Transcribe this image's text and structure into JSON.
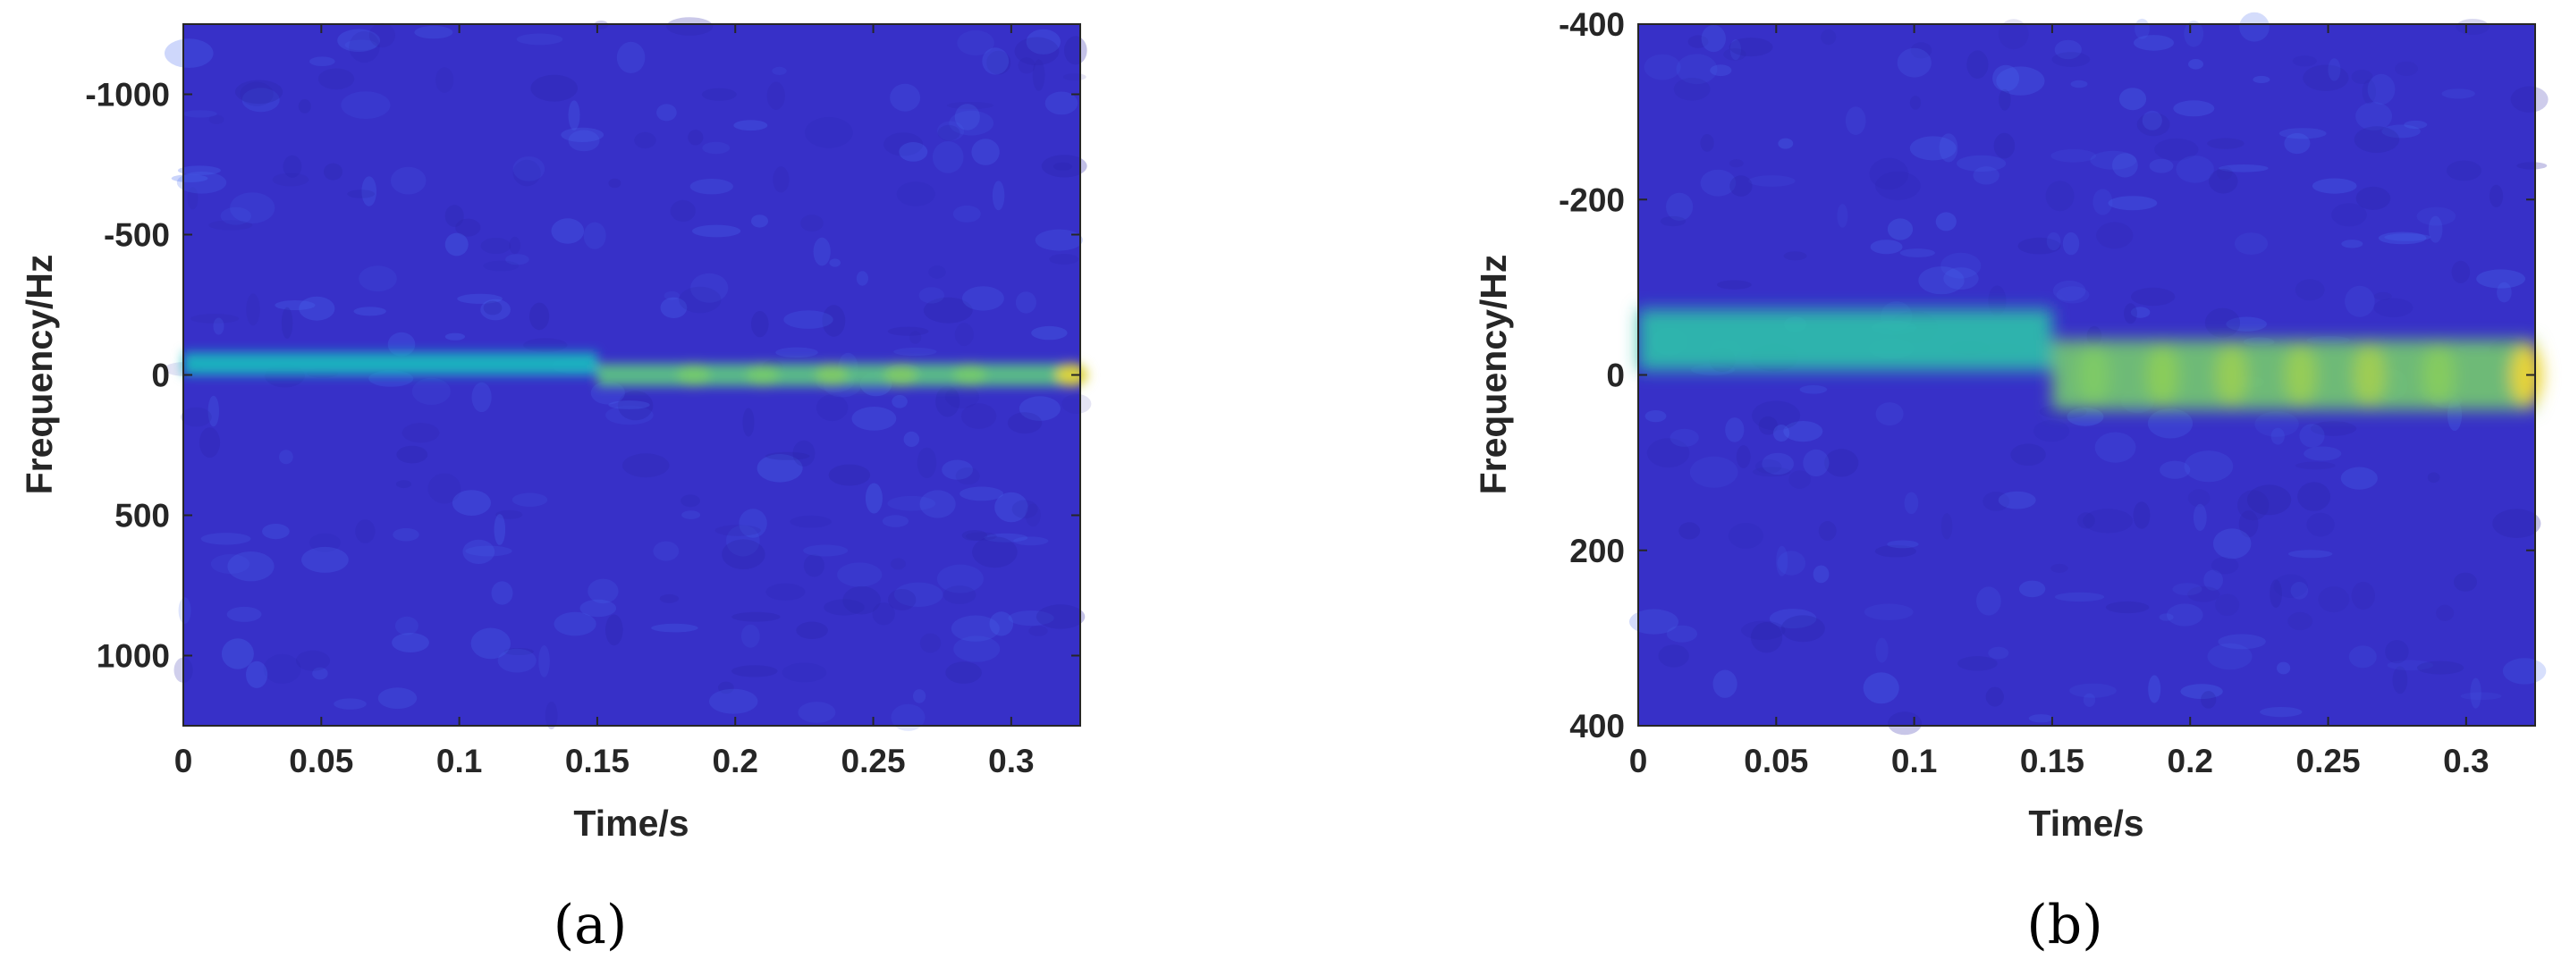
{
  "colors": {
    "background": "#3730c8",
    "texture_light": "#4a6cf0",
    "texture_dark": "#2a24a8",
    "ridge_mid": "#19c9b8",
    "ridge_high": "#e6d23a",
    "axis": "#262626"
  },
  "chart_data": [
    {
      "type": "heatmap",
      "caption": "(a)",
      "title": "",
      "xlabel": "Time/s",
      "ylabel": "Frequency/Hz",
      "xlim": [
        0,
        0.325
      ],
      "ylim": [
        -1250,
        1250
      ],
      "y_reversed": true,
      "colormap": "parula",
      "xticks": [
        0,
        0.05,
        0.1,
        0.15,
        0.2,
        0.25,
        0.3
      ],
      "xtick_labels": [
        "0",
        "0.05",
        "0.1",
        "0.15",
        "0.2",
        "0.25",
        "0.3"
      ],
      "yticks": [
        -1000,
        -500,
        0,
        500,
        1000
      ],
      "ytick_labels": [
        "-1000",
        "-500",
        "0",
        "500",
        "1000"
      ],
      "ridge_segments": [
        {
          "t_start": 0,
          "t_end": 0.15,
          "freq": -40,
          "intensity": 0.5,
          "band_halfwidth": 40
        },
        {
          "t_start": 0.15,
          "t_end": 0.325,
          "freq": 0,
          "intensity": 0.65,
          "band_halfwidth": 40
        }
      ],
      "peaks": [
        {
          "t": 0.185,
          "freq": 0,
          "intensity": 0.7
        },
        {
          "t": 0.21,
          "freq": 0,
          "intensity": 0.7
        },
        {
          "t": 0.235,
          "freq": 0,
          "intensity": 0.72
        },
        {
          "t": 0.26,
          "freq": 0,
          "intensity": 0.72
        },
        {
          "t": 0.285,
          "freq": 0,
          "intensity": 0.7
        },
        {
          "t": 0.322,
          "freq": 0,
          "intensity": 0.95
        }
      ]
    },
    {
      "type": "heatmap",
      "caption": "(b)",
      "title": "",
      "xlabel": "Time/s",
      "ylabel": "Frequency/Hz",
      "xlim": [
        0,
        0.325
      ],
      "ylim": [
        -400,
        400
      ],
      "y_reversed": true,
      "colormap": "parula",
      "xticks": [
        0,
        0.05,
        0.1,
        0.15,
        0.2,
        0.25,
        0.3
      ],
      "xtick_labels": [
        "0",
        "0.05",
        "0.1",
        "0.15",
        "0.2",
        "0.25",
        "0.3"
      ],
      "yticks": [
        -400,
        -200,
        0,
        200,
        400
      ],
      "ytick_labels": [
        "-400",
        "-200",
        "0",
        "200",
        "400"
      ],
      "ridge_segments": [
        {
          "t_start": 0,
          "t_end": 0.15,
          "freq": -40,
          "intensity": 0.55,
          "band_halfwidth": 35
        },
        {
          "t_start": 0.15,
          "t_end": 0.325,
          "freq": 0,
          "intensity": 0.7,
          "band_halfwidth": 40
        }
      ],
      "peaks": [
        {
          "t": 0.165,
          "freq": 0,
          "intensity": 0.72
        },
        {
          "t": 0.19,
          "freq": 0,
          "intensity": 0.75
        },
        {
          "t": 0.215,
          "freq": 0,
          "intensity": 0.78
        },
        {
          "t": 0.24,
          "freq": 0,
          "intensity": 0.78
        },
        {
          "t": 0.265,
          "freq": 0,
          "intensity": 0.8
        },
        {
          "t": 0.29,
          "freq": 0,
          "intensity": 0.74
        },
        {
          "t": 0.322,
          "freq": 0,
          "intensity": 0.98
        }
      ]
    }
  ]
}
